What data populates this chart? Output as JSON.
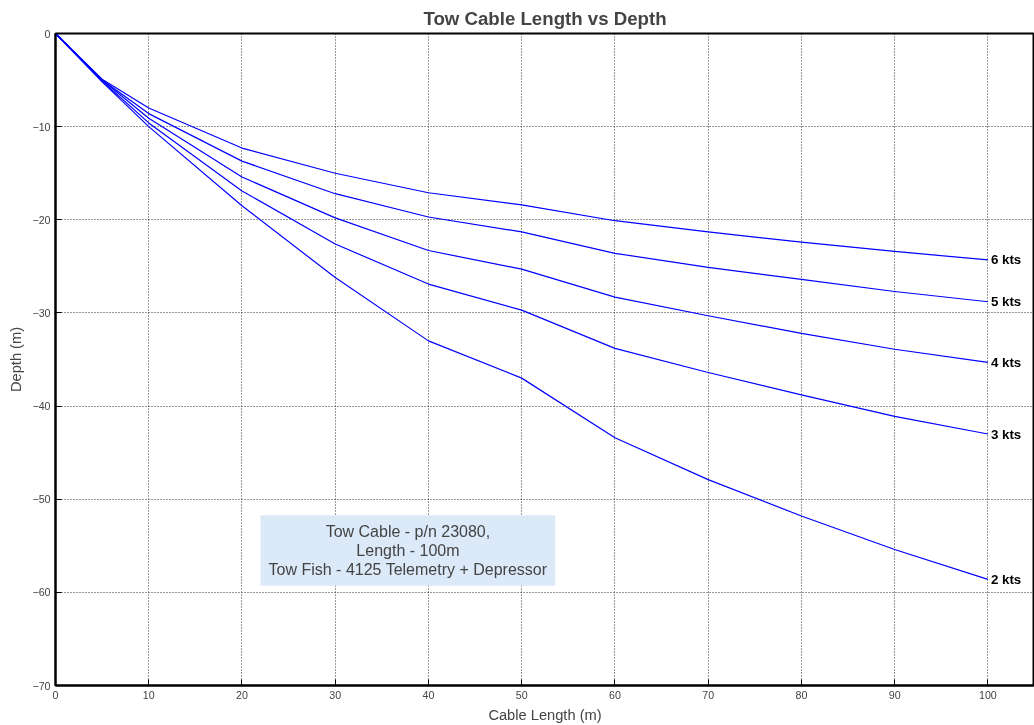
{
  "chart_data": {
    "type": "line",
    "title": "Tow Cable Length vs Depth",
    "xlabel": "Cable Length (m)",
    "ylabel": "Depth (m)",
    "x": [
      0,
      5,
      10,
      20,
      30,
      40,
      50,
      60,
      70,
      80,
      90,
      100
    ],
    "series": [
      {
        "name": "6 kts",
        "color": "#0000ff",
        "values": [
          0,
          -4.9,
          -8.0,
          -12.3,
          -15.0,
          -17.1,
          -18.4,
          -20.1,
          -21.3,
          -22.4,
          -23.4,
          -24.3
        ]
      },
      {
        "name": "5 kts",
        "color": "#0000ff",
        "values": [
          0,
          -5.0,
          -8.6,
          -13.7,
          -17.2,
          -19.7,
          -21.3,
          -23.6,
          -25.1,
          -26.4,
          -27.7,
          -28.8
        ]
      },
      {
        "name": "4 kts",
        "color": "#0000ff",
        "values": [
          0,
          -5.0,
          -9.1,
          -15.4,
          -19.8,
          -23.3,
          -25.3,
          -28.3,
          -30.3,
          -32.2,
          -33.9,
          -35.3
        ]
      },
      {
        "name": "3 kts",
        "color": "#0000ff",
        "values": [
          0,
          -5.1,
          -9.6,
          -16.9,
          -22.6,
          -26.9,
          -29.7,
          -33.8,
          -36.4,
          -38.8,
          -41.1,
          -43.0
        ]
      },
      {
        "name": "2 kts",
        "color": "#0000ff",
        "values": [
          0,
          -5.2,
          -10.0,
          -18.5,
          -26.2,
          -33.0,
          -37.0,
          -43.4,
          -47.9,
          -51.8,
          -55.4,
          -58.6
        ]
      }
    ],
    "xlim": [
      0,
      105
    ],
    "ylim": [
      -70,
      0
    ],
    "xticks": [
      0,
      10,
      20,
      30,
      40,
      50,
      60,
      70,
      80,
      90,
      100
    ],
    "yticks": [
      -70,
      -60,
      -50,
      -40,
      -30,
      -20,
      -10,
      0
    ],
    "grid": true,
    "marker": "none",
    "line_style": "solid",
    "annotations": [
      "Tow Cable - p/n 23080,\nLength - 100m\nTow Fish - 4125 Telemetry + Depressor"
    ]
  }
}
